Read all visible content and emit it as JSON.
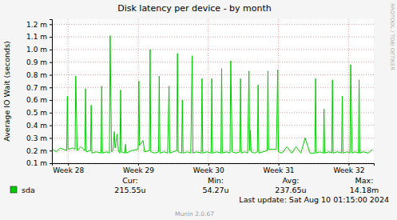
{
  "chart_data": {
    "type": "line",
    "title": "Disk latency per device - by month",
    "y_label": "Average IO Wait (seconds)",
    "x": [
      27.78,
      27.83,
      27.89,
      27.98,
      27.99,
      28.0,
      28.06,
      28.1,
      28.11,
      28.13,
      28.18,
      28.24,
      28.25,
      28.26,
      28.32,
      28.33,
      28.34,
      28.4,
      28.47,
      28.48,
      28.49,
      28.55,
      28.59,
      28.6,
      28.62,
      28.64,
      28.66,
      28.67,
      28.7,
      28.72,
      28.74,
      28.75,
      28.76,
      28.81,
      28.82,
      28.83,
      28.91,
      29.0,
      29.01,
      29.02,
      29.07,
      29.09,
      29.16,
      29.17,
      29.18,
      29.24,
      29.29,
      29.3,
      29.31,
      29.37,
      29.42,
      29.44,
      29.45,
      29.5,
      29.55,
      29.56,
      29.57,
      29.62,
      29.63,
      29.64,
      29.7,
      29.75,
      29.77,
      29.78,
      29.83,
      29.9,
      29.91,
      29.92,
      29.98,
      30.04,
      30.05,
      30.06,
      30.12,
      30.18,
      30.19,
      30.2,
      30.26,
      30.31,
      30.32,
      30.34,
      30.39,
      30.45,
      30.46,
      30.47,
      30.52,
      30.56,
      30.58,
      30.59,
      30.6,
      30.61,
      30.66,
      30.7,
      30.71,
      30.72,
      30.78,
      30.84,
      30.85,
      30.86,
      30.92,
      30.97,
      30.99,
      31.0,
      31.05,
      31.12,
      31.19,
      31.25,
      31.32,
      31.38,
      31.45,
      31.52,
      31.53,
      31.54,
      31.59,
      31.64,
      31.65,
      31.66,
      31.72,
      31.76,
      31.77,
      31.78,
      31.84,
      31.9,
      31.91,
      31.92,
      31.98,
      32.02,
      32.03,
      32.05,
      32.09,
      32.14,
      32.15,
      32.16,
      32.21,
      32.28,
      32.34
    ],
    "series": [
      {
        "name": "sda",
        "color": "#00cc00",
        "values": [
          0.00021,
          0.00019,
          0.00022,
          0.0002,
          0.00063,
          0.00021,
          0.00022,
          0.00021,
          0.00079,
          0.0002,
          0.00023,
          0.0002,
          0.00069,
          0.00019,
          0.0002,
          0.00056,
          0.00018,
          0.00019,
          0.00018,
          0.00071,
          0.00018,
          0.00019,
          0.00018,
          0.00111,
          0.00019,
          0.0002,
          0.00035,
          0.00022,
          0.00033,
          0.00019,
          0.00018,
          0.00068,
          0.00019,
          0.00018,
          0.00025,
          0.00018,
          0.0002,
          0.00021,
          0.00075,
          0.00024,
          0.00028,
          0.00019,
          0.0002,
          0.001,
          0.00019,
          0.00018,
          0.00019,
          0.00079,
          0.00018,
          0.00019,
          0.00018,
          0.00071,
          0.00018,
          0.00019,
          0.0002,
          0.00097,
          0.00019,
          0.00018,
          0.0006,
          0.00018,
          0.00019,
          0.00018,
          0.00095,
          0.00018,
          0.00019,
          0.00018,
          0.00077,
          0.00018,
          0.00019,
          0.00018,
          0.00077,
          0.00018,
          0.00019,
          0.00018,
          0.00085,
          0.00018,
          0.00019,
          0.00018,
          0.00091,
          0.00019,
          0.00018,
          0.00019,
          0.00077,
          0.00018,
          0.00019,
          0.00018,
          0.00083,
          0.0002,
          0.00036,
          0.00019,
          0.00018,
          0.00019,
          0.00072,
          0.00018,
          0.00019,
          0.0002,
          0.00083,
          0.00021,
          0.00021,
          0.00021,
          0.00084,
          0.00019,
          0.00018,
          0.00023,
          0.00018,
          0.00023,
          0.00018,
          0.0003,
          0.00018,
          0.00018,
          0.00077,
          0.00018,
          0.00019,
          0.00018,
          0.00053,
          0.00018,
          0.00019,
          0.00018,
          0.00076,
          0.00018,
          0.00019,
          0.00018,
          0.00063,
          0.00018,
          0.00019,
          0.00018,
          0.00088,
          0.00018,
          0.00019,
          0.00018,
          0.00076,
          0.00018,
          0.00019,
          0.00018,
          0.00021
        ],
        "stats": [
          {
            "label": "Cur:",
            "value": 0.00021555,
            "value_label": "215.55u"
          },
          {
            "label": "Min:",
            "value": 5.427e-05,
            "value_label": "54.27u"
          },
          {
            "label": "Avg:",
            "value": 0.00023765,
            "value_label": "237.65u"
          },
          {
            "label": "Max:",
            "value": 0.01418,
            "value_label": "14.18m"
          }
        ]
      }
    ],
    "xlim": [
      27.77,
      32.36
    ],
    "xticks": [
      {
        "value": 28,
        "label": "Week 28"
      },
      {
        "value": 29,
        "label": "Week 29"
      },
      {
        "value": 30,
        "label": "Week 30"
      },
      {
        "value": 31,
        "label": "Week 31"
      },
      {
        "value": 32,
        "label": "Week 32"
      }
    ],
    "ylim": [
      0.0001,
      0.00124
    ],
    "yticks": [
      {
        "value": 0.0001,
        "label": "0.1 m"
      },
      {
        "value": 0.0002,
        "label": "0.2 m"
      },
      {
        "value": 0.0003,
        "label": "0.3 m"
      },
      {
        "value": 0.0004,
        "label": "0.4 m"
      },
      {
        "value": 0.0005,
        "label": "0.5 m"
      },
      {
        "value": 0.0006,
        "label": "0.6 m"
      },
      {
        "value": 0.0007,
        "label": "0.7 m"
      },
      {
        "value": 0.0008,
        "label": "0.8 m"
      },
      {
        "value": 0.0009,
        "label": "0.9 m"
      },
      {
        "value": 0.001,
        "label": "1.0 m"
      },
      {
        "value": 0.0011,
        "label": "1.1 m"
      },
      {
        "value": 0.0012,
        "label": "1.2 m"
      }
    ],
    "grid": true,
    "last_update": "Last update: Sat Aug 10 01:15:00 2024",
    "footer": "Munin 2.0.67",
    "watermark": "RRDTOOL / TOBI OETIKER"
  }
}
